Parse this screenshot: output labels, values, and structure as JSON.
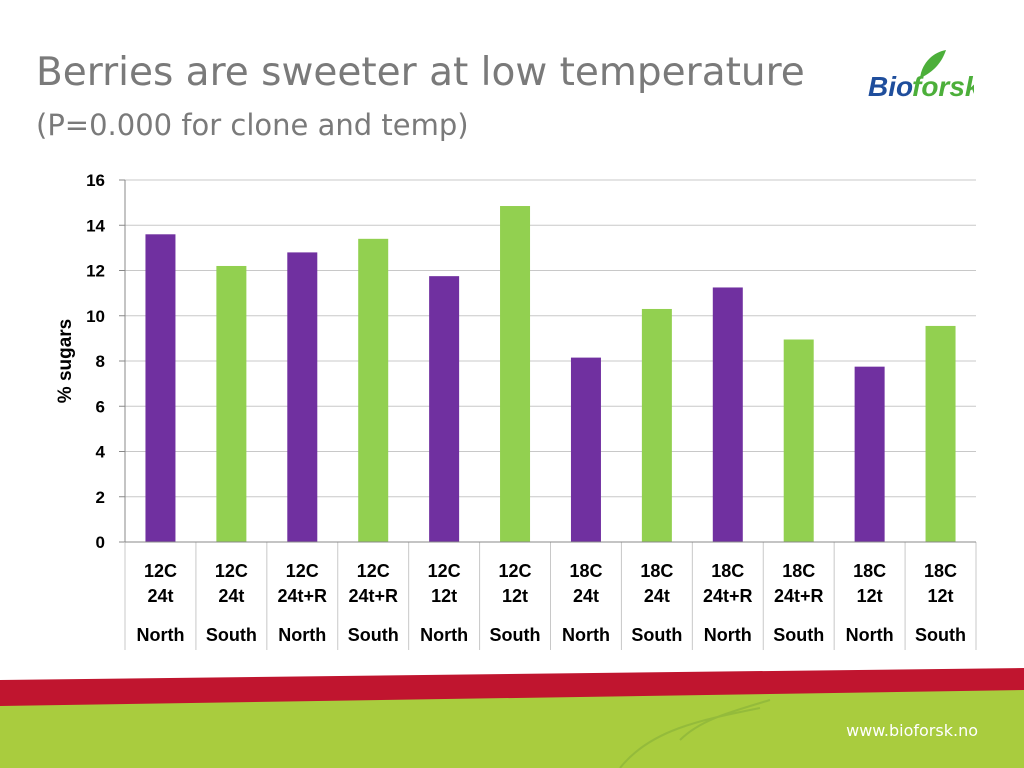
{
  "title": "Berries are sweeter at low temperature",
  "subtitle": "(P=0.000 for clone and temp)",
  "logo": {
    "text_bio": "Bio",
    "text_forsk": "forsk",
    "icon": "leaf-icon",
    "color_blue": "#1f4e9c",
    "color_green": "#4caf3a"
  },
  "footer": {
    "url": "www.bioforsk.no",
    "band_red": "#c0152f",
    "band_green": "#a9cc3e"
  },
  "colors": {
    "north": "#7030a0",
    "south": "#92d050",
    "grid": "#c8c8c8",
    "axis_text": "#000000"
  },
  "chart_data": {
    "type": "bar",
    "ylabel": "% sugars",
    "ylim": [
      0,
      16
    ],
    "yticks": [
      0,
      2,
      4,
      6,
      8,
      10,
      12,
      14,
      16
    ],
    "grid": true,
    "categories": [
      {
        "treatment": [
          "12C",
          "24t"
        ],
        "origin": "North",
        "value": 13.6
      },
      {
        "treatment": [
          "12C",
          "24t"
        ],
        "origin": "South",
        "value": 12.2
      },
      {
        "treatment": [
          "12C",
          "24t+R"
        ],
        "origin": "North",
        "value": 12.8
      },
      {
        "treatment": [
          "12C",
          "24t+R"
        ],
        "origin": "South",
        "value": 13.4
      },
      {
        "treatment": [
          "12C",
          "12t"
        ],
        "origin": "North",
        "value": 11.75
      },
      {
        "treatment": [
          "12C",
          "12t"
        ],
        "origin": "South",
        "value": 14.85
      },
      {
        "treatment": [
          "18C",
          "24t"
        ],
        "origin": "North",
        "value": 8.15
      },
      {
        "treatment": [
          "18C",
          "24t"
        ],
        "origin": "South",
        "value": 10.3
      },
      {
        "treatment": [
          "18C",
          "24t+R"
        ],
        "origin": "North",
        "value": 11.25
      },
      {
        "treatment": [
          "18C",
          "24t+R"
        ],
        "origin": "South",
        "value": 8.95
      },
      {
        "treatment": [
          "18C",
          "12t"
        ],
        "origin": "North",
        "value": 7.75
      },
      {
        "treatment": [
          "18C",
          "12t"
        ],
        "origin": "South",
        "value": 9.55
      }
    ]
  }
}
